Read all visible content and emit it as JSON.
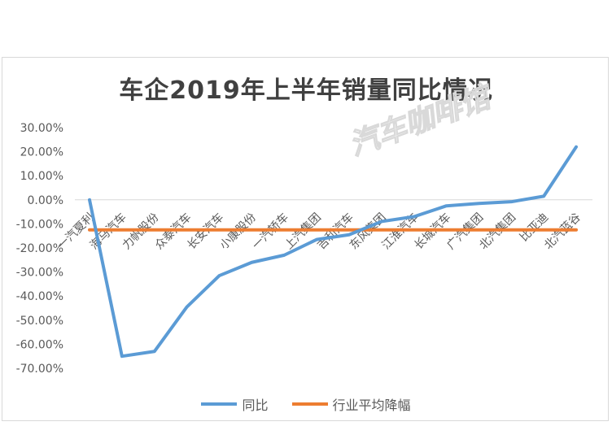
{
  "chart_data": {
    "type": "line",
    "title": "车企2019年上半年销量同比情况",
    "categories": [
      "一汽夏利",
      "海马汽车",
      "力帆股份",
      "众泰汽车",
      "长安汽车",
      "小康股份",
      "一汽轿车",
      "上汽集团",
      "吉利汽车",
      "东风集团",
      "江淮汽车",
      "长城汽车",
      "广汽集团",
      "北汽集团",
      "比亚迪",
      "北汽蓝谷"
    ],
    "series": [
      {
        "name": "同比",
        "color": "#5b9bd5",
        "values": [
          0.0,
          -65.0,
          -63.0,
          -44.5,
          -31.5,
          -26.0,
          -23.0,
          -16.5,
          -14.5,
          -9.0,
          -7.0,
          -2.5,
          -1.5,
          -0.8,
          1.5,
          22.0
        ]
      },
      {
        "name": "行业平均降幅",
        "color": "#ed7d31",
        "values": [
          -12.5,
          -12.5,
          -12.5,
          -12.5,
          -12.5,
          -12.5,
          -12.5,
          -12.5,
          -12.5,
          -12.5,
          -12.5,
          -12.5,
          -12.5,
          -12.5,
          -12.5,
          -12.5
        ]
      }
    ],
    "y_ticks": [
      "30.00%",
      "20.00%",
      "10.00%",
      "0.00%",
      "-10.00%",
      "-20.00%",
      "-30.00%",
      "-40.00%",
      "-50.00%",
      "-60.00%",
      "-70.00%"
    ],
    "ylim": [
      -70,
      30
    ],
    "grid": false,
    "legend_position": "bottom"
  },
  "watermark": "汽车咖啡馆",
  "colors": {
    "watermark": "#d9d9d9",
    "axis_text": "#595959",
    "title": "#404040"
  }
}
